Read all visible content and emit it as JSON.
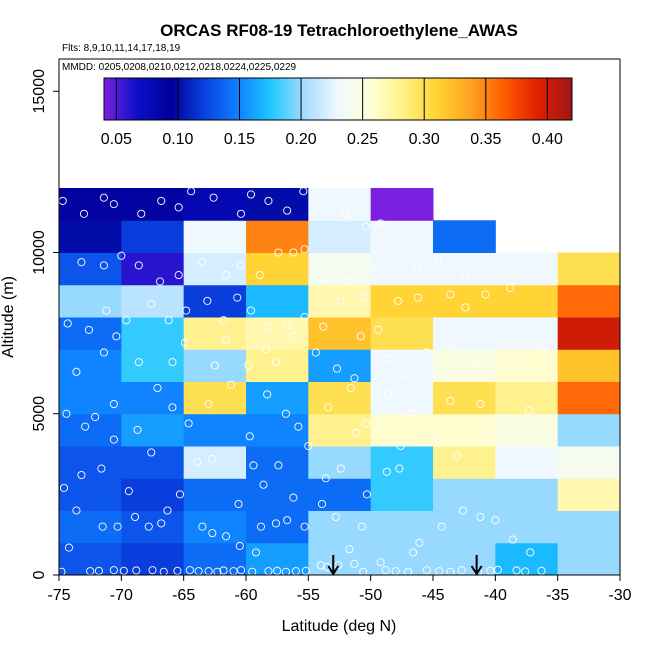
{
  "chart_data": {
    "type": "heatmap",
    "title": "ORCAS RF08-19 Tetrachloroethylene_AWAS",
    "subtitle_flights": "Flts: 8,9,10,11,14,17,18,19",
    "subtitle_dates": "MMDD: 0205,0208,0210,0212,0218,0224,0225,0229",
    "xlabel": "Latitude (deg N)",
    "ylabel": "Altitude (m)",
    "xlim": [
      -75,
      -30
    ],
    "ylim": [
      0,
      16000
    ],
    "x_ticks": [
      -75,
      -70,
      -65,
      -60,
      -55,
      -50,
      -45,
      -40,
      -35,
      -30
    ],
    "x_tick_labels": [
      "-75",
      "-70",
      "-65",
      "-60",
      "-55",
      "-50",
      "-45",
      "-40",
      "-35",
      "-30"
    ],
    "y_ticks": [
      0,
      5000,
      10000,
      15000
    ],
    "y_tick_labels": [
      "0",
      "5000",
      "10000",
      "15000"
    ],
    "colorbar": {
      "min": 0.04,
      "max": 0.42,
      "ticks": [
        0.05,
        0.1,
        0.15,
        0.2,
        0.25,
        0.3,
        0.35,
        0.4
      ],
      "tick_labels": [
        "0.05",
        "0.10",
        "0.15",
        "0.20",
        "0.25",
        "0.30",
        "0.35",
        "0.40"
      ],
      "stops": [
        "#7b1fe0",
        "#0a10c8",
        "#00009a",
        "#0a40e0",
        "#0f80ff",
        "#1ec8ff",
        "#a6dcff",
        "#f0f8ff",
        "#ffffd8",
        "#fff080",
        "#ffd230",
        "#ffa020",
        "#ff5a00",
        "#e01e00",
        "#a01818"
      ]
    },
    "bin_width_lat": 5,
    "bin_height_alt": 1000,
    "lat_bins": [
      -75,
      -70,
      -65,
      -60,
      -55,
      -50,
      -45,
      -40,
      -35
    ],
    "alt_bins": [
      0,
      1000,
      2000,
      3000,
      4000,
      5000,
      6000,
      7000,
      8000,
      9000,
      10000,
      11000,
      12000
    ],
    "cells": [
      [
        0.13,
        0.12,
        0.14,
        0.16,
        0.2,
        0.2,
        0.2,
        0.17,
        0.2
      ],
      [
        0.14,
        0.13,
        0.15,
        0.14,
        0.2,
        0.2,
        0.2,
        0.2,
        0.2
      ],
      [
        0.13,
        0.12,
        0.14,
        0.14,
        0.14,
        0.18,
        0.2,
        0.2,
        0.27
      ],
      [
        0.13,
        0.13,
        0.22,
        0.14,
        0.2,
        0.18,
        0.28,
        0.23,
        0.24
      ],
      [
        0.14,
        0.16,
        0.15,
        0.15,
        0.28,
        0.26,
        0.26,
        0.25,
        0.2
      ],
      [
        0.15,
        0.15,
        0.3,
        0.16,
        0.3,
        0.23,
        0.3,
        0.28,
        0.36
      ],
      [
        0.15,
        0.18,
        0.2,
        0.28,
        0.16,
        0.23,
        0.25,
        0.26,
        0.32
      ],
      [
        0.14,
        0.18,
        0.28,
        0.27,
        0.32,
        0.3,
        0.23,
        0.23,
        0.4
      ],
      [
        0.2,
        0.21,
        0.12,
        0.17,
        0.27,
        0.31,
        0.31,
        0.31,
        0.36
      ],
      [
        0.13,
        0.06,
        0.22,
        0.31,
        0.24,
        0.23,
        0.23,
        0.23,
        0.3
      ],
      [
        0.1,
        0.12,
        0.23,
        0.35,
        0.22,
        0.23,
        0.14,
        null,
        null
      ],
      [
        0.09,
        0.09,
        0.08,
        0.1,
        0.23,
        0.04,
        null,
        null,
        null
      ]
    ],
    "arrows_lat": [
      -53,
      -41.5
    ],
    "points": [
      [
        -74.8,
        100
      ],
      [
        -72.5,
        120
      ],
      [
        -71.8,
        130
      ],
      [
        -70.6,
        150
      ],
      [
        -69.8,
        130
      ],
      [
        -68.8,
        140
      ],
      [
        -67.5,
        150
      ],
      [
        -66.6,
        100
      ],
      [
        -65.5,
        130
      ],
      [
        -64.5,
        150
      ],
      [
        -63.8,
        120
      ],
      [
        -63,
        120
      ],
      [
        -62.3,
        100
      ],
      [
        -61.8,
        140
      ],
      [
        -61,
        120
      ],
      [
        -60.4,
        150
      ],
      [
        -59.5,
        100
      ],
      [
        -58.2,
        120
      ],
      [
        -57.5,
        130
      ],
      [
        -56.8,
        100
      ],
      [
        -56,
        120
      ],
      [
        -55.2,
        130
      ],
      [
        -54,
        300
      ],
      [
        -53.5,
        250
      ],
      [
        -52.6,
        300
      ],
      [
        -51.3,
        350
      ],
      [
        -50.6,
        100
      ],
      [
        -48.8,
        150
      ],
      [
        -48,
        120
      ],
      [
        -47,
        100
      ],
      [
        -45.5,
        150
      ],
      [
        -44.5,
        120
      ],
      [
        -43.6,
        100
      ],
      [
        -42.7,
        150
      ],
      [
        -41.4,
        100
      ],
      [
        -40.4,
        130
      ],
      [
        -39.8,
        160
      ],
      [
        -38.3,
        140
      ],
      [
        -37.6,
        110
      ],
      [
        -36.3,
        130
      ],
      [
        -74.2,
        850
      ],
      [
        -70.3,
        1500
      ],
      [
        -73.6,
        2000
      ],
      [
        -71.5,
        1500
      ],
      [
        -68.9,
        1800
      ],
      [
        -67.8,
        1500
      ],
      [
        -66.8,
        1600
      ],
      [
        -63.5,
        1500
      ],
      [
        -62.7,
        1300
      ],
      [
        -61.6,
        1200
      ],
      [
        -60.5,
        900
      ],
      [
        -59.2,
        700
      ],
      [
        -58.8,
        1500
      ],
      [
        -57.6,
        1600
      ],
      [
        -56.7,
        1700
      ],
      [
        -55.3,
        1500
      ],
      [
        -53.9,
        2200
      ],
      [
        -52.8,
        1800
      ],
      [
        -51.7,
        800
      ],
      [
        -50.7,
        1500
      ],
      [
        -50.3,
        2500
      ],
      [
        -49.2,
        400
      ],
      [
        -47.7,
        3300
      ],
      [
        -46.6,
        700
      ],
      [
        -46.1,
        1000
      ],
      [
        -44.3,
        1500
      ],
      [
        -42.6,
        2000
      ],
      [
        -41.2,
        1800
      ],
      [
        -40,
        1700
      ],
      [
        -38.6,
        1100
      ],
      [
        -37.2,
        700
      ],
      [
        -74.6,
        2700
      ],
      [
        -73.2,
        3100
      ],
      [
        -71.6,
        3300
      ],
      [
        -70.6,
        4200
      ],
      [
        -69.4,
        2600
      ],
      [
        -67.6,
        3800
      ],
      [
        -66.3,
        2000
      ],
      [
        -65.3,
        2500
      ],
      [
        -63.9,
        3500
      ],
      [
        -62.7,
        3600
      ],
      [
        -60.6,
        2200
      ],
      [
        -59.4,
        3400
      ],
      [
        -58.6,
        2800
      ],
      [
        -57.4,
        3400
      ],
      [
        -56.2,
        2400
      ],
      [
        -55,
        4000
      ],
      [
        -53.6,
        3000
      ],
      [
        -52.4,
        3300
      ],
      [
        -51.2,
        4400
      ],
      [
        -48.7,
        3200
      ],
      [
        -47.6,
        4000
      ],
      [
        -44.6,
        4200
      ],
      [
        -43.1,
        3700
      ],
      [
        -40.8,
        4500
      ],
      [
        -74.4,
        5000
      ],
      [
        -72.9,
        4600
      ],
      [
        -72.1,
        4900
      ],
      [
        -70.6,
        5300
      ],
      [
        -68.7,
        4500
      ],
      [
        -67.1,
        5800
      ],
      [
        -65.9,
        5200
      ],
      [
        -64.6,
        4700
      ],
      [
        -63,
        5300
      ],
      [
        -61.2,
        5900
      ],
      [
        -59.7,
        4300
      ],
      [
        -58.3,
        5600
      ],
      [
        -56.8,
        5000
      ],
      [
        -55.8,
        4600
      ],
      [
        -53.4,
        5200
      ],
      [
        -51.6,
        5800
      ],
      [
        -50.4,
        4700
      ],
      [
        -48.6,
        5600
      ],
      [
        -46.8,
        5000
      ],
      [
        -43.6,
        5400
      ],
      [
        -41.2,
        5300
      ],
      [
        -37.3,
        5100
      ],
      [
        -73.6,
        6300
      ],
      [
        -71.4,
        6900
      ],
      [
        -70.4,
        7400
      ],
      [
        -68.6,
        6600
      ],
      [
        -65.9,
        6600
      ],
      [
        -64.9,
        7200
      ],
      [
        -62.5,
        6500
      ],
      [
        -61.6,
        7300
      ],
      [
        -59.8,
        6500
      ],
      [
        -58.4,
        7000
      ],
      [
        -57.6,
        6600
      ],
      [
        -56.2,
        7400
      ],
      [
        -54.4,
        6900
      ],
      [
        -52.7,
        6400
      ],
      [
        -51.3,
        6100
      ],
      [
        -50.8,
        7400
      ],
      [
        -48.7,
        6700
      ],
      [
        -47.3,
        6200
      ],
      [
        -45.5,
        6900
      ],
      [
        -43.6,
        7200
      ],
      [
        -41.6,
        6500
      ],
      [
        -38.6,
        6700
      ],
      [
        -36.3,
        7000
      ],
      [
        -74.3,
        7800
      ],
      [
        -72.6,
        7600
      ],
      [
        -71.2,
        8200
      ],
      [
        -69.6,
        7900
      ],
      [
        -67.6,
        8400
      ],
      [
        -66.2,
        7900
      ],
      [
        -64.8,
        8200
      ],
      [
        -63.1,
        8500
      ],
      [
        -61.8,
        7900
      ],
      [
        -60.7,
        8600
      ],
      [
        -59.6,
        8200
      ],
      [
        -58.3,
        7700
      ],
      [
        -56.7,
        7700
      ],
      [
        -55.3,
        8000
      ],
      [
        -53.8,
        7700
      ],
      [
        -52.4,
        8500
      ],
      [
        -50.6,
        8600
      ],
      [
        -49.4,
        7600
      ],
      [
        -47.8,
        8500
      ],
      [
        -46.2,
        8600
      ],
      [
        -43.6,
        8700
      ],
      [
        -42.4,
        8300
      ],
      [
        -40.8,
        8700
      ],
      [
        -38.8,
        8900
      ],
      [
        -73.2,
        9700
      ],
      [
        -71.4,
        9600
      ],
      [
        -70,
        9900
      ],
      [
        -68.6,
        9600
      ],
      [
        -66.9,
        9100
      ],
      [
        -65.4,
        9300
      ],
      [
        -63.5,
        9700
      ],
      [
        -61.6,
        9300
      ],
      [
        -60.4,
        9600
      ],
      [
        -58.9,
        9300
      ],
      [
        -57.4,
        10000
      ],
      [
        -56.2,
        10000
      ],
      [
        -55.3,
        10100
      ],
      [
        -53.6,
        9200
      ],
      [
        -51.9,
        9100
      ],
      [
        -49.7,
        9400
      ],
      [
        -48.1,
        9900
      ],
      [
        -46.3,
        9500
      ],
      [
        -44.6,
        9800
      ],
      [
        -42.4,
        9300
      ],
      [
        -74.7,
        11600
      ],
      [
        -73,
        11200
      ],
      [
        -71.4,
        11700
      ],
      [
        -70.6,
        11500
      ],
      [
        -68.4,
        11200
      ],
      [
        -66.8,
        11600
      ],
      [
        -65.4,
        11400
      ],
      [
        -64.4,
        11900
      ],
      [
        -62.6,
        11700
      ],
      [
        -60.4,
        11200
      ],
      [
        -59.6,
        11800
      ],
      [
        -58.2,
        11600
      ],
      [
        -56.7,
        11300
      ],
      [
        -55.4,
        11900
      ],
      [
        -53.4,
        11600
      ],
      [
        -52,
        11200
      ],
      [
        -50.4,
        10800
      ],
      [
        -49.2,
        10900
      ]
    ]
  }
}
